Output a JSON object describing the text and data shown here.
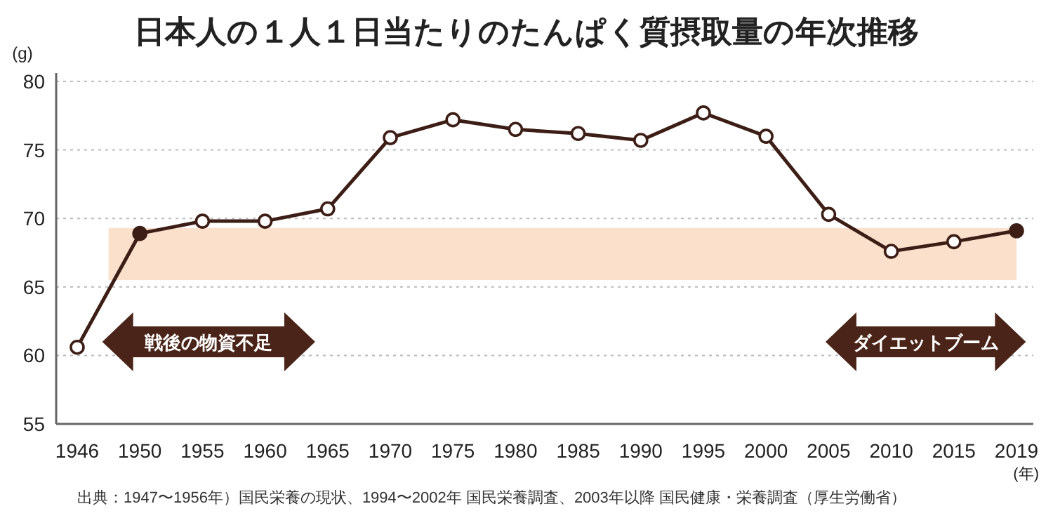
{
  "chart_data": {
    "type": "line",
    "title": "日本人の１人１日当たりのたんぱく質摂取量の年次推移",
    "ylabel": "(g)",
    "xlabel": "(年)",
    "categories": [
      "1946",
      "1950",
      "1955",
      "1960",
      "1965",
      "1970",
      "1975",
      "1980",
      "1985",
      "1990",
      "1995",
      "2000",
      "2005",
      "2010",
      "2015",
      "2019"
    ],
    "series": [
      {
        "color": "#3d1e16",
        "values": [
          60.6,
          68.9,
          69.8,
          69.8,
          70.7,
          75.9,
          77.2,
          76.5,
          76.2,
          75.7,
          77.7,
          76.0,
          70.3,
          67.6,
          68.3,
          69.1
        ],
        "colors": [
          "#ffffff",
          "#3d1e16",
          "#ffffff",
          "#ffffff",
          "#ffffff",
          "#ffffff",
          "#ffffff",
          "#ffffff",
          "#ffffff",
          "#ffffff",
          "#ffffff",
          "#ffffff",
          "#ffffff",
          "#ffffff",
          "#ffffff",
          "#3d1e16"
        ]
      }
    ],
    "ylim": [
      55,
      80
    ],
    "yticks": [
      55,
      60,
      65,
      70,
      75,
      80
    ],
    "grid": "y",
    "marker": "circle",
    "line_style": "solid",
    "bands": [
      {
        "axis": "y",
        "from": 65.5,
        "to": 69.3,
        "color": "#fbe0cc"
      }
    ],
    "annotations": [
      "戦後の物資不足",
      "ダイエットブーム",
      "出典：1947〜1956年）国民栄養の現状、1994〜2002年 国民栄養調査、2003年以降 国民健康・栄養調査（厚生労働省）"
    ]
  }
}
